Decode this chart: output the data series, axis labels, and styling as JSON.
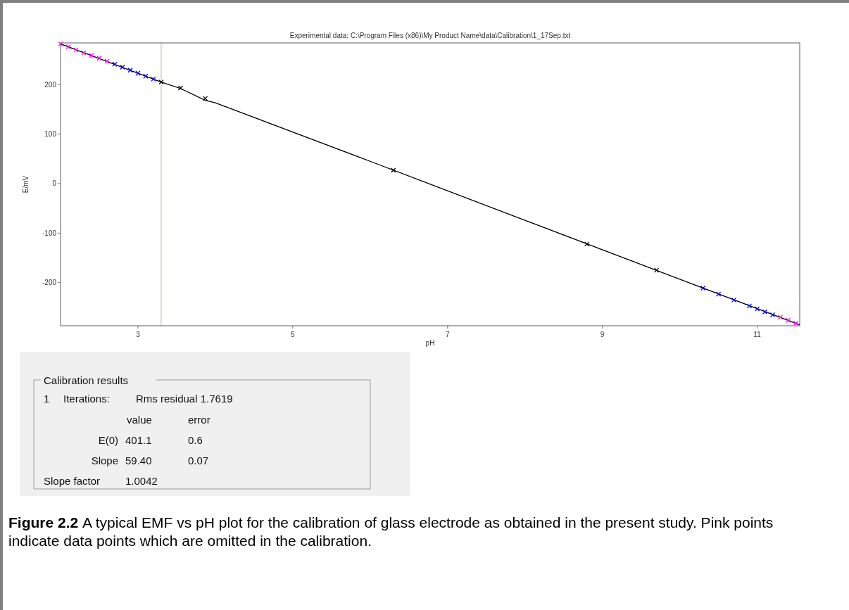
{
  "chart_data": {
    "type": "scatter",
    "title": "Experimental data: C:\\Program Files (x86)\\My Product Name\\data\\Calibration\\1_17Sep.txt",
    "xlabel": "pH",
    "ylabel": "E/mV",
    "xlim": [
      2,
      11.55
    ],
    "ylim": [
      -287,
      284
    ],
    "xticks": [
      3,
      5,
      7,
      9,
      11
    ],
    "yticks": [
      -200,
      -100,
      0,
      100,
      200
    ],
    "marker": "cross",
    "ref_lines": [
      {
        "axis": "x",
        "value": 3.3,
        "color": "#c8c89a"
      }
    ],
    "series": [
      {
        "type": "line",
        "color": "#000000",
        "marker": "none",
        "x": [
          2,
          3.3,
          3.55,
          3.87,
          4,
          6,
          8,
          10,
          11.55
        ],
        "values": [
          282,
          205,
          192,
          168,
          163,
          45,
          -74,
          -193,
          -285
        ]
      },
      {
        "color": "#ff00ff",
        "x": [
          2.0,
          2.1,
          2.2,
          2.3,
          2.4,
          2.5,
          2.6
        ],
        "values": [
          282,
          276,
          270,
          264,
          259,
          253,
          247
        ]
      },
      {
        "color": "#0000ff",
        "x": [
          2.7,
          2.8,
          2.9,
          3.0,
          3.1,
          3.2
        ],
        "values": [
          241,
          235,
          229,
          223,
          217,
          211
        ]
      },
      {
        "color": "#000000",
        "x": [
          3.3,
          3.55,
          3.87,
          6.3,
          8.8,
          9.7
        ],
        "values": [
          205,
          193,
          172,
          27,
          -122,
          -175
        ]
      },
      {
        "color": "#0000ff",
        "x": [
          10.3,
          10.5,
          10.7,
          10.9,
          11.0,
          11.1,
          11.2
        ],
        "values": [
          -211,
          -223,
          -235,
          -247,
          -253,
          -259,
          -265
        ]
      },
      {
        "color": "#ff00ff",
        "x": [
          11.3,
          11.4,
          11.5
        ],
        "values": [
          -270,
          -276,
          -282
        ]
      }
    ],
    "annotations": [
      "Calibration results",
      "1",
      "Iterations:",
      "Rms residual 1.7619",
      "value",
      "error",
      "E(0)",
      "401.1",
      "0.6",
      "Slope",
      "59.40",
      "0.07",
      "Slope factor",
      "1.0042",
      "Figure 2.2",
      "A typical EMF vs pH plot for the calibration of glass electrode as obtained in the present study. Pink points indicate data points which are omitted in the calibration."
    ]
  }
}
